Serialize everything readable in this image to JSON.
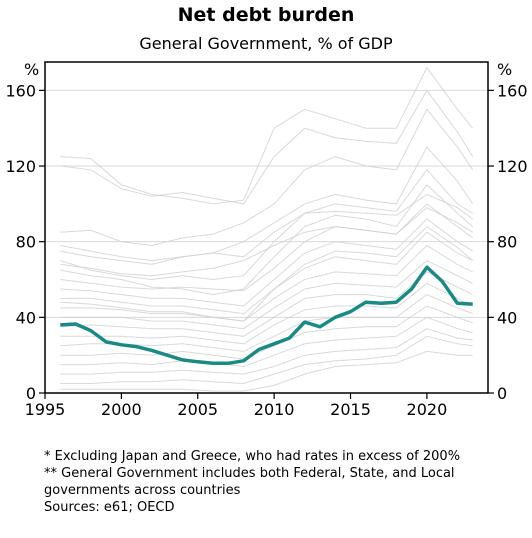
{
  "chart_data": {
    "type": "line",
    "title": "Net debt burden",
    "subtitle": "General Government, % of GDP",
    "yunit_left": "%",
    "yunit_right": "%",
    "xlim": [
      1995,
      2024
    ],
    "ylim": [
      0,
      175
    ],
    "xticks": [
      1995,
      2000,
      2005,
      2010,
      2015,
      2020
    ],
    "yticks": [
      0,
      40,
      80,
      120,
      160
    ],
    "grid": true,
    "highlight_color": "#1a8a86",
    "background_color": "#d0d0d0",
    "highlight": {
      "x": [
        1996,
        1997,
        1998,
        1999,
        2000,
        2001,
        2002,
        2003,
        2004,
        2005,
        2006,
        2007,
        2008,
        2009,
        2010,
        2011,
        2012,
        2013,
        2014,
        2015,
        2016,
        2017,
        2018,
        2019,
        2020,
        2021,
        2022,
        2023
      ],
      "values": [
        36,
        36.5,
        33,
        27,
        25.5,
        24.5,
        22.5,
        20,
        17.5,
        16.5,
        15.7,
        15.7,
        17,
        23,
        26,
        29,
        37.5,
        35,
        40,
        43,
        48,
        47.5,
        48,
        55,
        66.5,
        59,
        47.5,
        47
      ]
    },
    "background_series": [
      {
        "x": [
          1996,
          1998,
          2000,
          2002,
          2004,
          2006,
          2008,
          2010,
          2012,
          2014,
          2016,
          2018,
          2020,
          2022,
          2023
        ],
        "values": [
          125,
          124,
          110,
          105,
          103,
          100,
          102,
          140,
          150,
          145,
          140,
          140,
          172,
          150,
          140
        ]
      },
      {
        "x": [
          1996,
          1998,
          2000,
          2002,
          2004,
          2006,
          2008,
          2010,
          2012,
          2014,
          2016,
          2018,
          2020,
          2022,
          2023
        ],
        "values": [
          120,
          118,
          108,
          104,
          106,
          103,
          100,
          125,
          140,
          135,
          133,
          132,
          160,
          138,
          125
        ]
      },
      {
        "x": [
          1996,
          1998,
          2000,
          2002,
          2004,
          2006,
          2008,
          2010,
          2012,
          2014,
          2016,
          2018,
          2020,
          2022,
          2023
        ],
        "values": [
          85,
          86,
          80,
          78,
          82,
          84,
          90,
          100,
          118,
          125,
          120,
          118,
          150,
          130,
          118
        ]
      },
      {
        "x": [
          1996,
          1998,
          2000,
          2002,
          2004,
          2006,
          2008,
          2010,
          2012,
          2014,
          2016,
          2018,
          2020,
          2022,
          2023
        ],
        "values": [
          75,
          72,
          70,
          68,
          72,
          74,
          80,
          90,
          100,
          105,
          102,
          100,
          130,
          112,
          100
        ]
      },
      {
        "x": [
          1996,
          1998,
          2000,
          2002,
          2004,
          2006,
          2008,
          2010,
          2012,
          2014,
          2016,
          2018,
          2020,
          2022,
          2023
        ],
        "values": [
          70,
          65,
          62,
          60,
          62,
          60,
          62,
          80,
          95,
          100,
          98,
          96,
          118,
          100,
          95
        ]
      },
      {
        "x": [
          1996,
          1998,
          2000,
          2002,
          2004,
          2006,
          2008,
          2010,
          2012,
          2014,
          2016,
          2018,
          2020,
          2022,
          2023
        ],
        "values": [
          65,
          62,
          60,
          56,
          55,
          52,
          55,
          72,
          88,
          94,
          92,
          88,
          110,
          95,
          88
        ]
      },
      {
        "x": [
          1996,
          1998,
          2000,
          2002,
          2004,
          2006,
          2008,
          2010,
          2012,
          2014,
          2016,
          2018,
          2020,
          2022,
          2023
        ],
        "values": [
          60,
          58,
          56,
          55,
          56,
          55,
          54,
          66,
          80,
          88,
          86,
          84,
          100,
          88,
          82
        ]
      },
      {
        "x": [
          1996,
          1998,
          2000,
          2002,
          2004,
          2006,
          2008,
          2010,
          2012,
          2014,
          2016,
          2018,
          2020,
          2022,
          2023
        ],
        "values": [
          55,
          54,
          52,
          50,
          50,
          48,
          46,
          60,
          74,
          80,
          78,
          76,
          92,
          80,
          75
        ]
      },
      {
        "x": [
          1996,
          1998,
          2000,
          2002,
          2004,
          2006,
          2008,
          2010,
          2012,
          2014,
          2016,
          2018,
          2020,
          2022,
          2023
        ],
        "values": [
          50,
          50,
          48,
          46,
          46,
          44,
          42,
          55,
          66,
          72,
          70,
          68,
          85,
          74,
          70
        ]
      },
      {
        "x": [
          1996,
          1998,
          2000,
          2002,
          2004,
          2006,
          2008,
          2010,
          2012,
          2014,
          2016,
          2018,
          2020,
          2022,
          2023
        ],
        "values": [
          45,
          45,
          44,
          42,
          42,
          40,
          38,
          50,
          60,
          64,
          63,
          62,
          78,
          68,
          64
        ]
      },
      {
        "x": [
          1996,
          1998,
          2000,
          2002,
          2004,
          2006,
          2008,
          2010,
          2012,
          2014,
          2016,
          2018,
          2020,
          2022,
          2023
        ],
        "values": [
          40,
          40,
          40,
          38,
          38,
          36,
          34,
          45,
          55,
          58,
          57,
          56,
          70,
          62,
          58
        ]
      },
      {
        "x": [
          1996,
          1998,
          2000,
          2002,
          2004,
          2006,
          2008,
          2010,
          2012,
          2014,
          2016,
          2018,
          2020,
          2022,
          2023
        ],
        "values": [
          35,
          36,
          35,
          34,
          34,
          32,
          30,
          40,
          50,
          52,
          52,
          50,
          64,
          56,
          52
        ]
      },
      {
        "x": [
          1996,
          1998,
          2000,
          2002,
          2004,
          2006,
          2008,
          2010,
          2012,
          2014,
          2016,
          2018,
          2020,
          2022,
          2023
        ],
        "values": [
          30,
          30,
          30,
          29,
          30,
          28,
          26,
          36,
          44,
          46,
          46,
          45,
          58,
          50,
          46
        ]
      },
      {
        "x": [
          1996,
          1998,
          2000,
          2002,
          2004,
          2006,
          2008,
          2010,
          2012,
          2014,
          2016,
          2018,
          2020,
          2022,
          2023
        ],
        "values": [
          25,
          26,
          26,
          25,
          26,
          24,
          22,
          30,
          38,
          40,
          40,
          40,
          52,
          45,
          42
        ]
      },
      {
        "x": [
          1996,
          1998,
          2000,
          2002,
          2004,
          2006,
          2008,
          2010,
          2012,
          2014,
          2016,
          2018,
          2020,
          2022,
          2023
        ],
        "values": [
          20,
          20,
          21,
          20,
          22,
          20,
          18,
          25,
          32,
          34,
          35,
          35,
          46,
          40,
          37
        ]
      },
      {
        "x": [
          1996,
          1998,
          2000,
          2002,
          2004,
          2006,
          2008,
          2010,
          2012,
          2014,
          2016,
          2018,
          2020,
          2022,
          2023
        ],
        "values": [
          15,
          15,
          16,
          15,
          17,
          16,
          14,
          20,
          26,
          28,
          29,
          30,
          40,
          34,
          32
        ]
      },
      {
        "x": [
          1996,
          1998,
          2000,
          2002,
          2004,
          2006,
          2008,
          2010,
          2012,
          2014,
          2016,
          2018,
          2020,
          2022,
          2023
        ],
        "values": [
          10,
          10,
          11,
          11,
          12,
          11,
          10,
          14,
          20,
          22,
          23,
          24,
          34,
          29,
          28
        ]
      },
      {
        "x": [
          1996,
          1998,
          2000,
          2002,
          2004,
          2006,
          2008,
          2010,
          2012,
          2014,
          2016,
          2018,
          2020,
          2022,
          2023
        ],
        "values": [
          5,
          5,
          6,
          6,
          7,
          6,
          5,
          10,
          15,
          17,
          18,
          20,
          30,
          26,
          25
        ]
      },
      {
        "x": [
          1996,
          1998,
          2000,
          2002,
          2004,
          2006,
          2008,
          2010,
          2012,
          2014,
          2016,
          2018,
          2020,
          2022,
          2023
        ],
        "values": [
          2,
          2,
          2,
          2,
          2,
          1,
          1,
          4,
          10,
          14,
          15,
          16,
          22,
          20,
          20
        ]
      },
      {
        "x": [
          1996,
          1998,
          2000,
          2002,
          2004,
          2006,
          2008,
          2010,
          2012,
          2014,
          2016,
          2018,
          2020,
          2022,
          2023
        ],
        "values": [
          68,
          66,
          63,
          62,
          64,
          66,
          70,
          78,
          85,
          88,
          86,
          84,
          98,
          90,
          85
        ]
      },
      {
        "x": [
          1996,
          1998,
          2000,
          2002,
          2004,
          2006,
          2008,
          2010,
          2012,
          2014,
          2016,
          2018,
          2020,
          2022,
          2023
        ],
        "values": [
          78,
          75,
          72,
          70,
          72,
          74,
          72,
          85,
          95,
          96,
          95,
          94,
          105,
          98,
          92
        ]
      },
      {
        "x": [
          1996,
          1998,
          2000,
          2002,
          2004,
          2006,
          2008,
          2010,
          2012,
          2014,
          2016,
          2018,
          2020,
          2022,
          2023
        ],
        "values": [
          48,
          47,
          45,
          43,
          43,
          40,
          38,
          55,
          68,
          75,
          74,
          72,
          88,
          77,
          70
        ]
      }
    ]
  },
  "notes": [
    "* Excluding Japan and Greece, who had rates in excess of 200%",
    "** General Government includes both Federal, State, and Local governments across countries",
    "Sources: e61; OECD"
  ]
}
